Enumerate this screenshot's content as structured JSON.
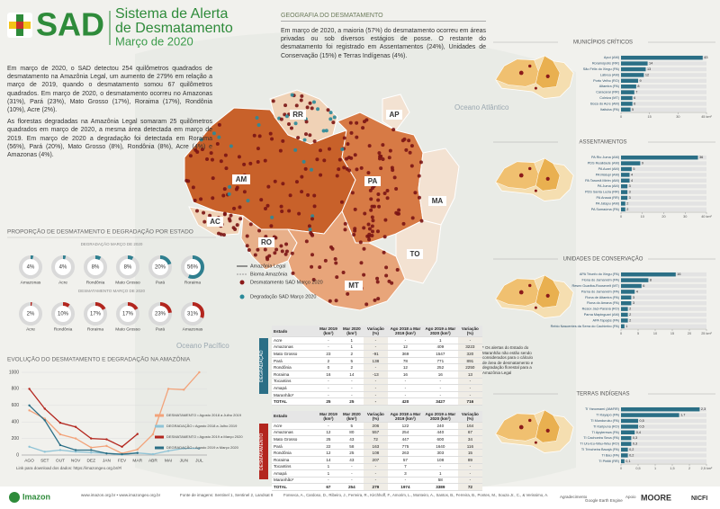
{
  "header": {
    "logo": "SAD",
    "title_line1": "Sistema de Alerta",
    "title_line2": "de Desmatamento",
    "date": "Março de 2020"
  },
  "intro": {
    "paragraphs": [
      "Em março de 2020, o SAD detectou 254 quilômetros quadrados de desmatamento na Amazônia Legal, um aumento de 279% em relação a março de 2019, quando o desmatamento somou 67 quilômetros quadrados. Em março de 2020, o desmatamento ocorreu no Amazonas (31%), Pará (23%), Mato Grosso (17%), Roraima (17%), Rondônia (10%), Acre (2%).",
      "As florestas degradadas na Amazônia Legal somaram 25 quilômetros quadrados em março de 2020, a mesma área detectada em março de 2019. Em março de 2020 a degradação foi detectada em Roraima (56%), Pará (20%), Mato Grosso (8%), Rondônia (8%), Acre (4%) e Amazonas (4%)."
    ]
  },
  "geography": {
    "title": "GEOGRAFIA DO DESMATAMENTO",
    "text": "Em março de 2020, a maioria (57%) do desmatamento ocorreu em áreas privadas ou sob diversos estágios de posse. O restante do desmatamento foi registrado em Assentamentos (24%), Unidades de Conservação (15%) e Terras Indígenas (4%)."
  },
  "map": {
    "states": [
      "RR",
      "AP",
      "AM",
      "PA",
      "MA",
      "AC",
      "RO",
      "TO",
      "MT"
    ],
    "oceans": [
      "Oceano Atlântico",
      "Oceano Pacífico"
    ],
    "legend": [
      "Amazônia Legal",
      "Bioma Amazônia",
      "Desmatamento SAD Março 2020",
      "Degradação SAD Março 2020"
    ]
  },
  "proportion_title": "PROPORÇÃO DE DESMATAMENTO E DEGRADAÇÃO POR ESTADO",
  "tables": [
    {
      "label": "DEGRADAÇÃO",
      "header": [
        "Estado",
        "Mar 2019 (km²)",
        "Mar 2020 (km²)",
        "Variação (%)",
        "Ago 2018 a Mar 2019 (km²)",
        "Ago 2019 a Mar 2020 (km²)",
        "Variação (%)"
      ],
      "rows": [
        [
          "Acre",
          "-",
          "1",
          "-",
          "-",
          "1",
          "-"
        ],
        [
          "Amazonas",
          "-",
          "1",
          "-",
          "12",
          "409",
          "3223"
        ],
        [
          "Mato Grosso",
          "23",
          "2",
          "-91",
          "369",
          "1547",
          "320"
        ],
        [
          "Pará",
          "2",
          "5",
          "138",
          "78",
          "771",
          "891"
        ],
        [
          "Rondônia",
          "0",
          "2",
          "-",
          "12",
          "252",
          "2250"
        ],
        [
          "Roraima",
          "16",
          "14",
          "-13",
          "16",
          "16",
          "13"
        ],
        [
          "Tocantins",
          "-",
          "-",
          "-",
          "-",
          "-",
          "-"
        ],
        [
          "Amapá",
          "-",
          "-",
          "-",
          "-",
          "-",
          "-"
        ],
        [
          "Maranhão*",
          "-",
          "-",
          "-",
          "-",
          "-",
          "-"
        ],
        [
          "TOTAL",
          "25",
          "25",
          "-",
          "420",
          "3427",
          "716"
        ]
      ]
    },
    {
      "label": "DESMATAMENTO",
      "header": [
        "Estado",
        "Mar 2019 (km²)",
        "Mar 2020 (km²)",
        "Variação (%)",
        "Ago 2018 a Mar 2019 (km²)",
        "Ago 2019 a Mar 2020 (km²)",
        "Variação (%)"
      ],
      "rows": [
        [
          "Acre",
          "-",
          "5",
          "206",
          "122",
          "240",
          "164"
        ],
        [
          "Amazonas",
          "12",
          "80",
          "557",
          "254",
          "440",
          "67"
        ],
        [
          "Mato Grosso",
          "25",
          "43",
          "72",
          "447",
          "600",
          "34"
        ],
        [
          "Pará",
          "22",
          "58",
          "163",
          "775",
          "1640",
          "116"
        ],
        [
          "Rondônia",
          "12",
          "25",
          "108",
          "263",
          "303",
          "15"
        ],
        [
          "Roraima",
          "14",
          "43",
          "207",
          "57",
          "108",
          "89"
        ],
        [
          "Tocantins",
          "1",
          "-",
          "-",
          "7",
          "-",
          "-"
        ],
        [
          "Amapá",
          "1",
          "-",
          "-",
          "3",
          "1",
          "-"
        ],
        [
          "Maranhão*",
          "-",
          "-",
          "-",
          "-",
          "58",
          "-"
        ],
        [
          "TOTAL",
          "67",
          "254",
          "279",
          "1974",
          "3389",
          "72"
        ]
      ]
    }
  ],
  "table_note": "* Os alertas do Estado do Maranhão não estão sendo considerados para o cálculo de área de desmatamento e degradação florestal para a Amazônia Legal",
  "download": "Link para download dos dados: https://imazongeo.org.br/#/",
  "footer": {
    "brand": "Imazon",
    "sites": "www.imazon.org.br • www.imazongeo.org.br",
    "source": "Fonte de imagens: Sentinel 1, Sentinel 2, Landsat 8",
    "authors": "Fonseca, A., Cardoso, D., Ribeiro, J., Ferreira, R., Kirchhoff, F., Amorim, L., Monteiro, A., Santos, B., Ferreira, B., Pontes, M., Souza Jr., C., & Verissimo, A.",
    "thanks": "Agradecimento",
    "gee": "Google Earth Engine",
    "support": "Apoio",
    "moore": "MOORE",
    "nicfi": "NICFI"
  },
  "chart_data": [
    {
      "type": "line",
      "title": "EVOLUÇÃO DO DESMATAMENTO E DEGRADAÇÃO NA AMAZÔNIA",
      "categories": [
        "AGO",
        "SET",
        "OUT",
        "NOV",
        "DEZ",
        "JAN",
        "FEV",
        "MAR",
        "ABR",
        "MAI",
        "JUN",
        "JUL"
      ],
      "ylim": [
        0,
        1000
      ],
      "yticks": [
        0,
        200,
        400,
        600,
        800,
        1000
      ],
      "series": [
        {
          "name": "DESMATAMENTO • Agosto 2018 a Julho 2019",
          "color": "#f2a37a",
          "values": [
            540,
            440,
            250,
            200,
            90,
            110,
            20,
            67,
            250,
            800,
            790,
            1000
          ]
        },
        {
          "name": "DEGRADAÇÃO • Agosto 2018 a Julho 2019",
          "color": "#8fc3d6",
          "values": [
            100,
            40,
            60,
            40,
            30,
            20,
            5,
            25,
            10,
            50,
            80,
            80
          ]
        },
        {
          "name": "DESMATAMENTO • Agosto 2019 a Março 2020",
          "color": "#b3261e",
          "values": [
            800,
            560,
            390,
            340,
            200,
            190,
            100,
            254,
            null,
            null,
            null,
            null
          ]
        },
        {
          "name": "DEGRADAÇÃO • Agosto 2019 a Março 2020",
          "color": "#2b6f86",
          "values": [
            600,
            420,
            120,
            60,
            60,
            20,
            10,
            25,
            null,
            null,
            null,
            null
          ]
        }
      ]
    },
    {
      "type": "donut",
      "title": "DEGRADAÇÃO MARÇO DE 2020",
      "color": "#2f7f8f",
      "categories": [
        "Amazonas",
        "Acre",
        "Rondônia",
        "Mato Grosso",
        "Pará",
        "Roraima"
      ],
      "values": [
        4,
        4,
        8,
        8,
        20,
        56
      ],
      "value_labels": [
        "4%",
        "4%",
        "8%",
        "8%",
        "20%",
        "56%"
      ]
    },
    {
      "type": "donut",
      "title": "DESMATAMENTO MARÇO DE 2020",
      "color": "#b3261e",
      "categories": [
        "Acre",
        "Rondônia",
        "Roraima",
        "Mato Grosso",
        "Pará",
        "Amazonas"
      ],
      "values": [
        2,
        10,
        17,
        17,
        23,
        31
      ],
      "value_labels": [
        "2%",
        "10%",
        "17%",
        "17%",
        "23%",
        "31%"
      ]
    },
    {
      "type": "hbar",
      "title": "MUNICÍPIOS CRÍTICOS",
      "color": "#2b6f86",
      "categories": [
        "Apuí (AM)",
        "Rorainópolis (RR)",
        "São Félix do Xingu (PA)",
        "Lábrea (AM)",
        "Porto Velho (RO)",
        "Altamira (PA)",
        "Caracaraí (RR)",
        "Colniza (MT)",
        "Boca do Acre (AM)",
        "Itaituba (PA)"
      ],
      "values": [
        43,
        14,
        13,
        12,
        9,
        8,
        7,
        6,
        6,
        5
      ],
      "xlim": [
        0,
        45
      ],
      "xticks": [
        0,
        15,
        30,
        {
          "value": 45,
          "label": "45 km²"
        }
      ]
    },
    {
      "type": "hbar",
      "title": "ASSENTAMENTOS",
      "color": "#2b6f86",
      "categories": [
        "PA Rio Juma (AM)",
        "PDS Realidade (AM)",
        "PA Acari (AM)",
        "PA Matupi (AM)",
        "PA Tarumã Mirim (AM)",
        "PA Juma (AM)",
        "PDS Santa Luzia (RR)",
        "PA Anauá (RR)",
        "PA Jatapu (AM)",
        "PA Sumaúma (PA)"
      ],
      "values": [
        36,
        9,
        5,
        4,
        4,
        3,
        3,
        3,
        2,
        2
      ],
      "xlim": [
        0,
        40
      ],
      "xticks": [
        0,
        10,
        20,
        30,
        {
          "value": 40,
          "label": "40 km²"
        }
      ]
    },
    {
      "type": "hbar",
      "title": "UNIDADES DE CONSERVAÇÃO",
      "color": "#2b6f86",
      "categories": [
        "APA Triunfo do Xingu (PA)",
        "Flona do Jamanxim (PA)",
        "Resex Guariba-Roosevelt (MT)",
        "Parna do Jamanxim (PA)",
        "Flona de Altamira (PA)",
        "Flona do Amana (PA)",
        "Resex Jaci-Paraná (RO)",
        "Parna Mapinguari (AM)",
        "APA Tapajós (PA)",
        "Rebio Nascentes da Serra do Cachimbo (PA)"
      ],
      "values": [
        16,
        8,
        6,
        4,
        3,
        3,
        2,
        2,
        2,
        1
      ],
      "xlim": [
        0,
        25
      ],
      "xticks": [
        0,
        5,
        10,
        15,
        20,
        {
          "value": 25,
          "label": "25 km²"
        }
      ]
    },
    {
      "type": "hbar",
      "title": "TERRAS INDÍGENAS",
      "color": "#2b6f86",
      "categories": [
        "TI Yanomami (AM/RR)",
        "TI Kayapó (PA)",
        "TI Munduruku (PA)",
        "TI Karipuna (RO)",
        "TI Apyterewa (PA)",
        "TI Cachoeira Seca (PA)",
        "TI Uru-Eu-Wau-Wau (RO)",
        "TI Trincheira Bacajá (PA)",
        "TI Baú (PA)",
        "TI Pirititi (RR)"
      ],
      "values": [
        2.3,
        1.7,
        0.5,
        0.5,
        0.4,
        0.3,
        0.3,
        0.2,
        0.2,
        0.1
      ],
      "value_labels": [
        "2,3",
        "1,7",
        "0,5",
        "0,5",
        "0,4",
        "0,3",
        "0,3",
        "0,2",
        "0,2",
        "0,1"
      ],
      "xlim": [
        0,
        2.5
      ],
      "xticks": [
        0,
        {
          "value": 0.5,
          "label": "0,5"
        },
        1,
        {
          "value": 1.5,
          "label": "1,5"
        },
        2,
        {
          "value": 2.5,
          "label": "2,5 km²"
        }
      ]
    }
  ]
}
